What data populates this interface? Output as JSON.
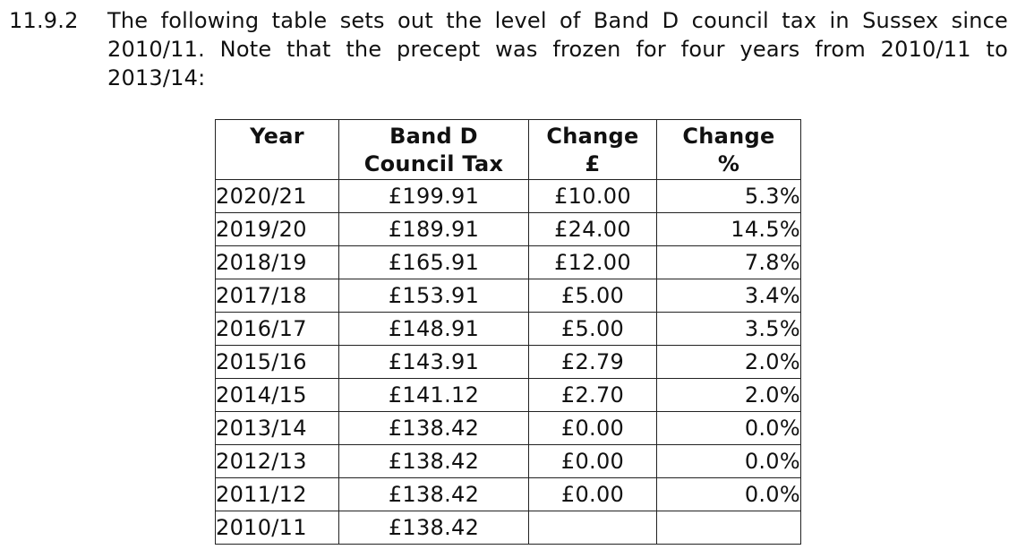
{
  "paragraph": {
    "number": "11.9.2",
    "text": "The following table sets out the level of Band D council tax in Sussex since 2010/11.  Note that the precept was frozen for four years from 2010/11 to 2013/14:"
  },
  "table": {
    "headers": {
      "year": "Year",
      "band_d_line1": "Band D",
      "band_d_line2": "Council Tax",
      "change_gbp_line1": "Change",
      "change_gbp_line2": "£",
      "change_pct_line1": "Change",
      "change_pct_line2": "%"
    },
    "rows": [
      {
        "year": "2020/21",
        "band_d": "£199.91",
        "change": "£10.00",
        "pct": "5.3%"
      },
      {
        "year": "2019/20",
        "band_d": "£189.91",
        "change": "£24.00",
        "pct": "14.5%"
      },
      {
        "year": "2018/19",
        "band_d": "£165.91",
        "change": "£12.00",
        "pct": "7.8%"
      },
      {
        "year": "2017/18",
        "band_d": "£153.91",
        "change": "£5.00",
        "pct": "3.4%"
      },
      {
        "year": "2016/17",
        "band_d": "£148.91",
        "change": "£5.00",
        "pct": "3.5%"
      },
      {
        "year": "2015/16",
        "band_d": "£143.91",
        "change": "£2.79",
        "pct": "2.0%"
      },
      {
        "year": "2014/15",
        "band_d": "£141.12",
        "change": "£2.70",
        "pct": "2.0%"
      },
      {
        "year": "2013/14",
        "band_d": "£138.42",
        "change": "£0.00",
        "pct": "0.0%"
      },
      {
        "year": "2012/13",
        "band_d": "£138.42",
        "change": "£0.00",
        "pct": "0.0%"
      },
      {
        "year": "2011/12",
        "band_d": "£138.42",
        "change": "£0.00",
        "pct": "0.0%"
      },
      {
        "year": "2010/11",
        "band_d": "£138.42",
        "change": "",
        "pct": ""
      }
    ]
  }
}
